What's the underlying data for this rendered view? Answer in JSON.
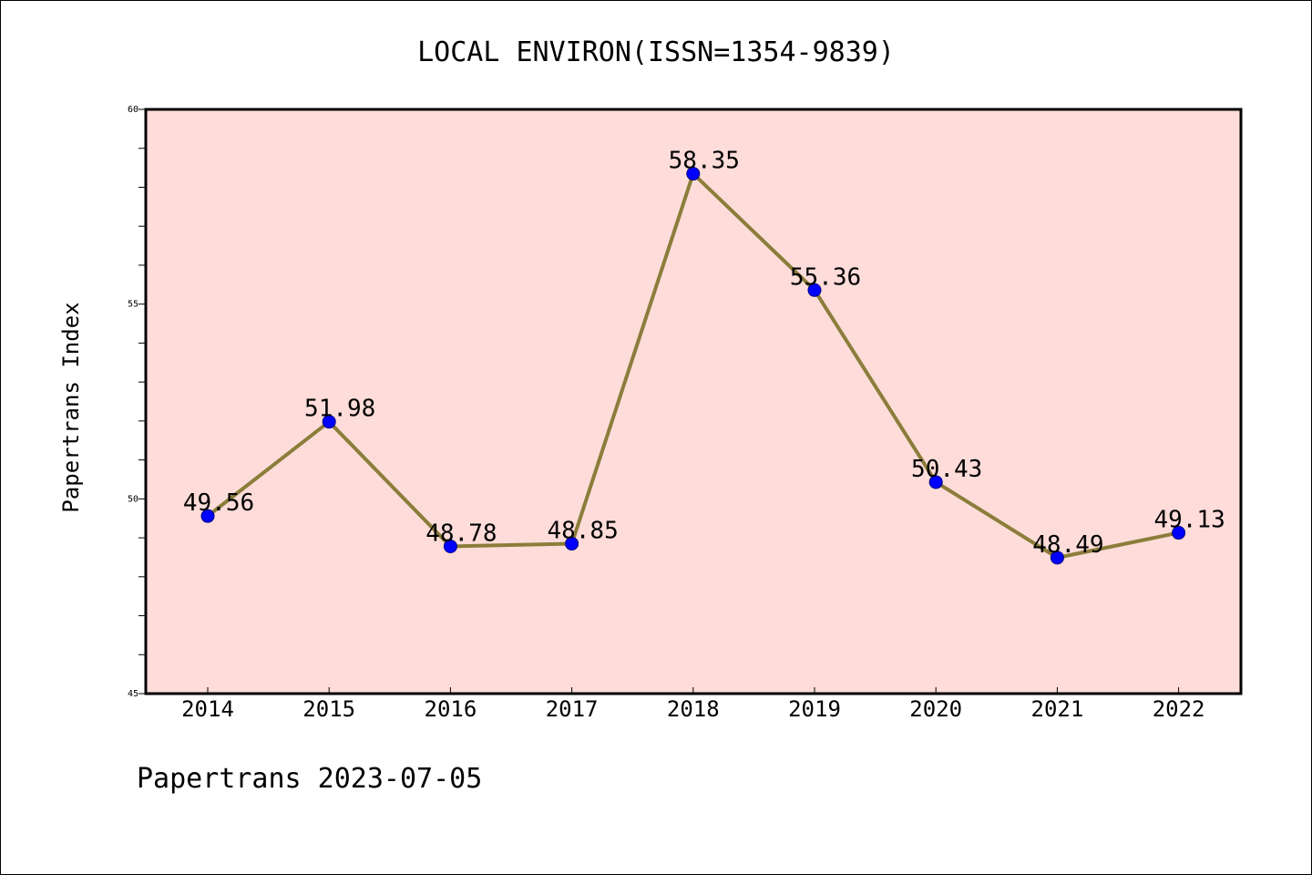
{
  "chart_data": {
    "type": "line",
    "title": "LOCAL ENVIRON(ISSN=1354-9839)",
    "xlabel": "",
    "ylabel": "Papertrans Index",
    "categories": [
      "2014",
      "2015",
      "2016",
      "2017",
      "2018",
      "2019",
      "2020",
      "2021",
      "2022"
    ],
    "values": [
      49.56,
      51.98,
      48.78,
      48.85,
      58.35,
      55.36,
      50.43,
      48.49,
      49.13
    ],
    "value_labels": [
      "49.56",
      "51.98",
      "48.78",
      "48.85",
      "58.35",
      "55.36",
      "50.43",
      "48.49",
      "49.13"
    ],
    "ylim": [
      45,
      60
    ],
    "y_ticks": [
      45,
      50,
      55,
      60
    ],
    "y_tick_labels": [
      "45",
      "50",
      "55",
      "60"
    ],
    "y_minor_step": 1,
    "grid": false,
    "legend": "none",
    "colors": {
      "plot_background": "#fddcd9",
      "line": "#8b7d3a",
      "marker": "#0000ff",
      "marker_edge": "#000080"
    }
  },
  "footer": {
    "text": "Papertrans 2023-07-05"
  }
}
